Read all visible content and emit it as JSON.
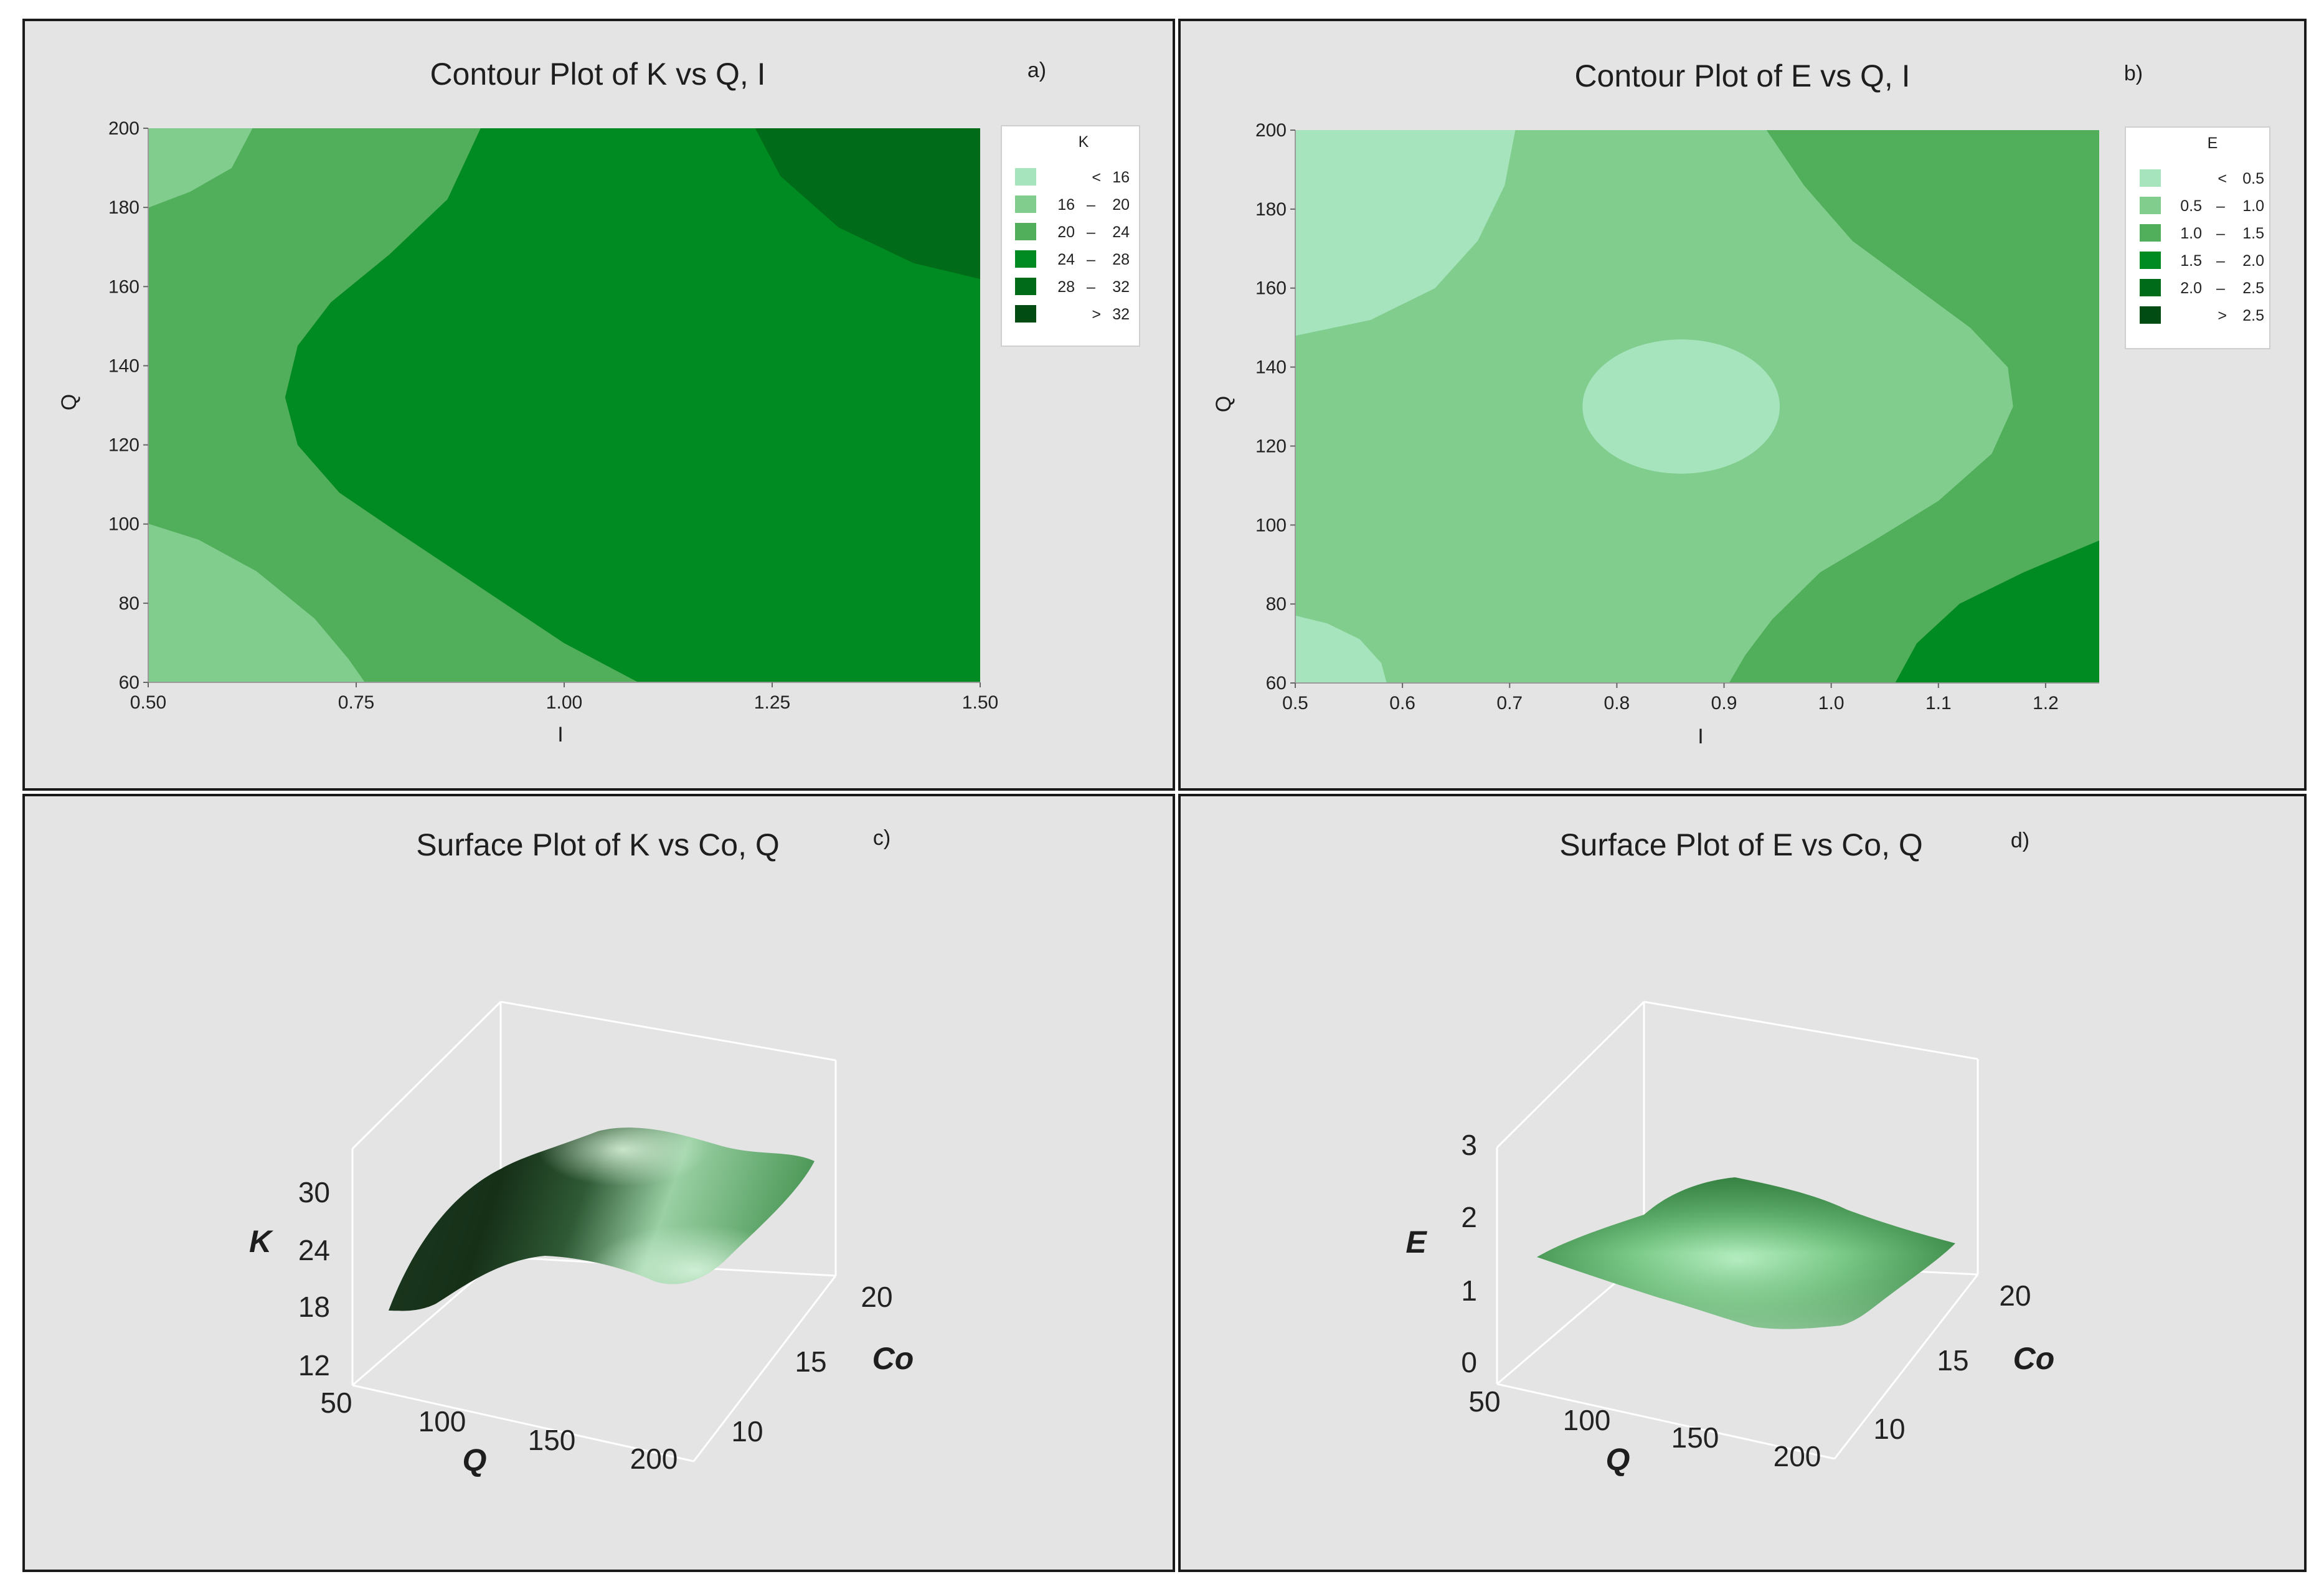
{
  "chart_data": [
    {
      "type": "contour",
      "panel_label": "a)",
      "title": "Contour Plot of K vs Q, I",
      "xlabel": "I",
      "ylabel": "Q",
      "xlim": [
        0.5,
        1.5
      ],
      "ylim": [
        60,
        200
      ],
      "xticks": [
        "0.50",
        "0.75",
        "1.00",
        "1.25",
        "1.50"
      ],
      "xtick_values": [
        0.5,
        0.75,
        1.0,
        1.25,
        1.5
      ],
      "yticks": [
        "60",
        "80",
        "100",
        "120",
        "140",
        "160",
        "180",
        "200"
      ],
      "ytick_values": [
        60,
        80,
        100,
        120,
        140,
        160,
        180,
        200
      ],
      "legend": {
        "title": "K",
        "entries": [
          {
            "op": "<",
            "lo": "",
            "hi": "16",
            "color": "#a6e4bd"
          },
          {
            "op": "",
            "lo": "16",
            "hi": "20",
            "color": "#81cd8d"
          },
          {
            "op": "",
            "lo": "20",
            "hi": "24",
            "color": "#51ae5a"
          },
          {
            "op": "",
            "lo": "24",
            "hi": "28",
            "color": "#008a22"
          },
          {
            "op": "",
            "lo": "28",
            "hi": "32",
            "color": "#006c19"
          },
          {
            "op": ">",
            "lo": "",
            "hi": "32",
            "color": "#004c12"
          }
        ]
      },
      "regions": [
        {
          "level": "20 - 24",
          "color": "#51ae5a",
          "points": [
            [
              0.5,
              60
            ],
            [
              1.5,
              60
            ],
            [
              1.5,
              200
            ],
            [
              0.5,
              200
            ]
          ]
        },
        {
          "level": "24 - 28",
          "color": "#008a22",
          "points": [
            [
              1.09,
              60
            ],
            [
              1.0,
              70
            ],
            [
              0.9,
              84
            ],
            [
              0.8,
              98
            ],
            [
              0.73,
              108
            ],
            [
              0.68,
              120
            ],
            [
              0.665,
              132
            ],
            [
              0.68,
              145
            ],
            [
              0.72,
              156
            ],
            [
              0.79,
              168
            ],
            [
              0.86,
              182
            ],
            [
              0.9,
              200
            ],
            [
              1.5,
              200
            ],
            [
              1.5,
              60
            ]
          ]
        },
        {
          "level": "28 - 32",
          "color": "#006c19",
          "points": [
            [
              1.23,
              200
            ],
            [
              1.26,
              188
            ],
            [
              1.33,
              175
            ],
            [
              1.42,
              166
            ],
            [
              1.5,
              162
            ],
            [
              1.5,
              200
            ]
          ]
        },
        {
          "level": "16 - 20",
          "color": "#81cd8d",
          "points": [
            [
              0.5,
              100
            ],
            [
              0.56,
              96
            ],
            [
              0.63,
              88
            ],
            [
              0.7,
              76
            ],
            [
              0.74,
              66
            ],
            [
              0.76,
              60
            ],
            [
              0.5,
              60
            ]
          ]
        },
        {
          "level": "16 - 20",
          "color": "#81cd8d",
          "points": [
            [
              0.5,
              180
            ],
            [
              0.55,
              184
            ],
            [
              0.6,
              190
            ],
            [
              0.625,
              200
            ],
            [
              0.5,
              200
            ]
          ]
        }
      ]
    },
    {
      "type": "contour",
      "panel_label": "b)",
      "title": "Contour Plot of E vs Q, I",
      "xlabel": "I",
      "ylabel": "Q",
      "xlim": [
        0.5,
        1.25
      ],
      "ylim": [
        60,
        200
      ],
      "xticks": [
        "0.5",
        "0.6",
        "0.7",
        "0.8",
        "0.9",
        "1.0",
        "1.1",
        "1.2"
      ],
      "xtick_values": [
        0.5,
        0.6,
        0.7,
        0.8,
        0.9,
        1.0,
        1.1,
        1.2
      ],
      "yticks": [
        "60",
        "80",
        "100",
        "120",
        "140",
        "160",
        "180",
        "200"
      ],
      "ytick_values": [
        60,
        80,
        100,
        120,
        140,
        160,
        180,
        200
      ],
      "legend": {
        "title": "E",
        "entries": [
          {
            "op": "<",
            "lo": "",
            "hi": "0.5",
            "color": "#a6e4bd"
          },
          {
            "op": "",
            "lo": "0.5",
            "hi": "1.0",
            "color": "#81cd8d"
          },
          {
            "op": "",
            "lo": "1.0",
            "hi": "1.5",
            "color": "#51ae5a"
          },
          {
            "op": "",
            "lo": "1.5",
            "hi": "2.0",
            "color": "#008a22"
          },
          {
            "op": "",
            "lo": "2.0",
            "hi": "2.5",
            "color": "#006c19"
          },
          {
            "op": ">",
            "lo": "",
            "hi": "2.5",
            "color": "#004c12"
          }
        ]
      },
      "regions": [
        {
          "level": "0.5 - 1.0",
          "color": "#81cd8d",
          "points": [
            [
              0.5,
              60
            ],
            [
              1.25,
              60
            ],
            [
              1.25,
              200
            ],
            [
              0.5,
              200
            ]
          ]
        },
        {
          "level": "1.0 - 1.5",
          "color": "#51ae5a",
          "points": [
            [
              0.94,
              200
            ],
            [
              0.975,
              186
            ],
            [
              1.02,
              172
            ],
            [
              1.08,
              160
            ],
            [
              1.13,
              150
            ],
            [
              1.165,
              140
            ],
            [
              1.17,
              130
            ],
            [
              1.15,
              118
            ],
            [
              1.1,
              106
            ],
            [
              1.04,
              96
            ],
            [
              0.99,
              88
            ],
            [
              0.945,
              76
            ],
            [
              0.92,
              67
            ],
            [
              0.905,
              60
            ],
            [
              1.25,
              60
            ],
            [
              1.25,
              200
            ]
          ]
        },
        {
          "level": "1.5 - 2.0",
          "color": "#008a22",
          "points": [
            [
              1.06,
              60
            ],
            [
              1.08,
              70
            ],
            [
              1.12,
              80
            ],
            [
              1.18,
              88
            ],
            [
              1.25,
              96
            ],
            [
              1.25,
              60
            ]
          ]
        },
        {
          "level": "< 0.5",
          "color": "#a6e4bd",
          "points": [
            [
              0.5,
              148
            ],
            [
              0.57,
              152
            ],
            [
              0.63,
              160
            ],
            [
              0.67,
              172
            ],
            [
              0.695,
              186
            ],
            [
              0.705,
              200
            ],
            [
              0.5,
              200
            ]
          ]
        },
        {
          "level": "< 0.5",
          "color": "#a6e4bd",
          "points": [
            [
              0.5,
              77
            ],
            [
              0.53,
              75
            ],
            [
              0.56,
              71
            ],
            [
              0.58,
              65
            ],
            [
              0.585,
              60
            ],
            [
              0.5,
              60
            ]
          ]
        },
        {
          "level": "< 0.5",
          "color": "#a6e4bd",
          "ellipse": {
            "cx": 0.86,
            "cy": 130,
            "rx": 0.092,
            "ry": 17
          }
        }
      ]
    },
    {
      "type": "surface3d",
      "panel_label": "c)",
      "title": "Surface Plot of K vs Co, Q",
      "zlabel": "K",
      "xlabel": "Q",
      "ylabel": "Co",
      "zticks": [
        "12",
        "18",
        "24",
        "30"
      ],
      "xticks": [
        "50",
        "100",
        "150",
        "200"
      ],
      "yticks": [
        "10",
        "15",
        "20"
      ],
      "surface_color": "#3f8a4a"
    },
    {
      "type": "surface3d",
      "panel_label": "d)",
      "title": "Surface Plot of E vs Co, Q",
      "zlabel": "E",
      "xlabel": "Q",
      "ylabel": "Co",
      "zticks": [
        "0",
        "1",
        "2",
        "3"
      ],
      "xticks": [
        "50",
        "100",
        "150",
        "200"
      ],
      "yticks": [
        "10",
        "15",
        "20"
      ],
      "surface_color": "#5fb16b"
    }
  ]
}
